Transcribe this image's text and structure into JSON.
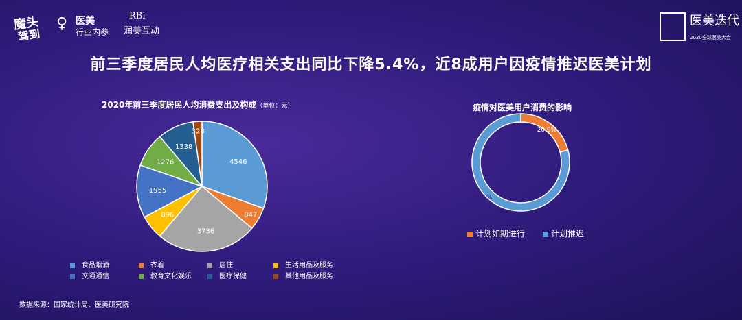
{
  "logos": {
    "logo1_line1": "魔头",
    "logo1_line2": "驾到",
    "logo2_name": "医美",
    "logo2_sub": "行业内参",
    "logo3_name": "RBi",
    "logo3_sub": "润美互动",
    "logo4_name": "医美迭代",
    "logo4_sub": "2020全球医美大会"
  },
  "headline": "前三季度居民人均医疗相关支出同比下降5.4%，近8成用户因疫情推迟医美计划",
  "chart1_title": "2020年前三季度居民人均消费支出及构成",
  "chart1_unit": "（单位：元）",
  "chart2_title": "疫情对医美用户消费的影响",
  "source": "数据来源：国家统计局、医美研究院",
  "chart_data": [
    {
      "type": "pie",
      "title": "2020年前三季度居民人均消费支出及构成",
      "unit": "元",
      "categories": [
        "食品烟酒",
        "衣着",
        "居住",
        "生活用品及服务",
        "交通通信",
        "教育文化娱乐",
        "医疗保健",
        "其他用品及服务"
      ],
      "values": [
        4546,
        847,
        3736,
        896,
        1955,
        1276,
        1338,
        328
      ],
      "colors": [
        "#5b9bd5",
        "#ed7d31",
        "#a5a5a5",
        "#ffc000",
        "#4472c4",
        "#70ad47",
        "#255e91",
        "#9e480e"
      ],
      "labels": [
        "4546",
        "847",
        "3736",
        "896",
        "1955",
        "1276",
        "1338",
        "328"
      ],
      "legend_position": "bottom"
    },
    {
      "type": "pie",
      "subtype": "donut",
      "title": "疫情对医美用户消费的影响",
      "categories": [
        "计划如期进行",
        "计划推迟"
      ],
      "values": [
        20.9,
        79.1
      ],
      "labels": [
        "20.9%",
        "79.1%"
      ],
      "colors": [
        "#ed7d31",
        "#5b9bd5"
      ],
      "legend_position": "bottom"
    }
  ]
}
